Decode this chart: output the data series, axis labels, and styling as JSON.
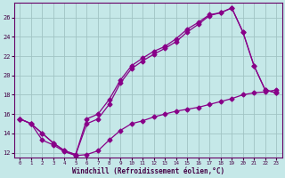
{
  "xlabel": "Windchill (Refroidissement éolien,°C)",
  "ylabel": "",
  "bg_color": "#c5e8e8",
  "grid_color": "#a0c4c4",
  "line_color": "#880088",
  "xlim": [
    -0.5,
    23.5
  ],
  "ylim": [
    11.5,
    27.5
  ],
  "xticks": [
    0,
    1,
    2,
    3,
    4,
    5,
    6,
    7,
    8,
    9,
    10,
    11,
    12,
    13,
    14,
    15,
    16,
    17,
    18,
    19,
    20,
    21,
    22,
    23
  ],
  "yticks": [
    12,
    14,
    16,
    18,
    20,
    22,
    24,
    26
  ],
  "line1_x": [
    0,
    1,
    2,
    3,
    4,
    5,
    6,
    7,
    8,
    9,
    10,
    11,
    12,
    13,
    14,
    15,
    16,
    17,
    18,
    19,
    20,
    21,
    22,
    23
  ],
  "line1_y": [
    15.5,
    15.0,
    14.0,
    13.0,
    12.2,
    11.8,
    15.5,
    16.0,
    17.5,
    19.5,
    21.0,
    21.8,
    22.5,
    23.0,
    23.8,
    24.8,
    25.5,
    26.3,
    26.5,
    27.0,
    24.5,
    21.0,
    18.5,
    18.2
  ],
  "line2_x": [
    0,
    1,
    2,
    3,
    4,
    5,
    6,
    7,
    8,
    9,
    10,
    11,
    12,
    13,
    14,
    15,
    16,
    17,
    18,
    19,
    20,
    21,
    22,
    23
  ],
  "line2_y": [
    15.5,
    15.0,
    14.0,
    13.0,
    12.2,
    11.8,
    15.0,
    15.5,
    17.0,
    19.2,
    20.7,
    21.5,
    22.2,
    22.8,
    23.5,
    24.5,
    25.3,
    26.2,
    26.5,
    27.0,
    24.5,
    21.0,
    18.5,
    18.2
  ],
  "line3_x": [
    0,
    1,
    2,
    3,
    4,
    5,
    6,
    7,
    8,
    9,
    10,
    11,
    12,
    13,
    14,
    15,
    16,
    17,
    18,
    19,
    20,
    21,
    22,
    23
  ],
  "line3_y": [
    15.5,
    15.0,
    13.3,
    12.8,
    12.1,
    11.7,
    11.8,
    12.2,
    13.3,
    14.3,
    15.0,
    15.3,
    15.7,
    16.0,
    16.3,
    16.5,
    16.7,
    17.0,
    17.3,
    17.6,
    18.0,
    18.2,
    18.3,
    18.5
  ]
}
